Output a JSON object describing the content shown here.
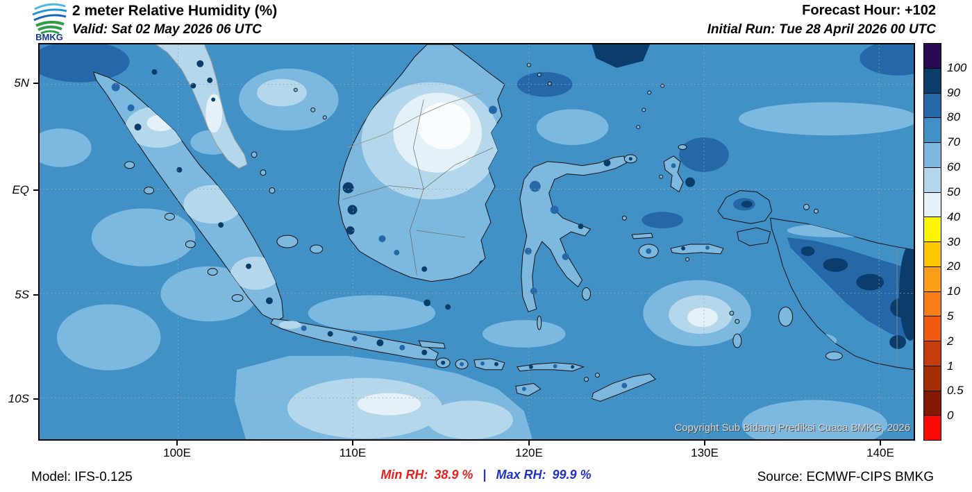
{
  "header": {
    "logo_text": "BMKG",
    "title": "2 meter Relative Humidity (%)",
    "valid": "Valid: Sat 02 May 2026 06 UTC",
    "forecast_hour": "Forecast Hour: +102",
    "initial_run": "Initial Run: Tue 28 April 2026 00 UTC"
  },
  "map": {
    "copyright": "Copyright Sub Bidang Prediksi Cuaca BMKG, 2026",
    "x_axis_labels": [
      "100E",
      "110E",
      "120E",
      "130E",
      "140E"
    ],
    "y_axis_labels": [
      "5N",
      "EQ",
      "5S",
      "10S"
    ]
  },
  "colorbar": {
    "labels": [
      "100",
      "90",
      "80",
      "70",
      "60",
      "50",
      "40",
      "30",
      "20",
      "10",
      "5",
      "2",
      "1",
      "0.5",
      "0"
    ],
    "colors": [
      "#2a0b52",
      "#0a3d6b",
      "#2667a8",
      "#4191c7",
      "#7db9de",
      "#b4d7ec",
      "#e4f1f9",
      "#fdf400",
      "#fdc800",
      "#fb9e18",
      "#f67d17",
      "#ee5a0f",
      "#c63d0d",
      "#a52e06",
      "#831803",
      "#fa0a05"
    ]
  },
  "footer": {
    "model": "Model: IFS-0.125",
    "min_rh_label": "Min RH:",
    "min_rh_value": "38.9 %",
    "separator": "|",
    "max_rh_label": "Max RH:",
    "max_rh_value": "99.9 %",
    "min_color": "#e8201c",
    "max_color": "#2230cc",
    "source": "Source: ECMWF-CIPS BMKG"
  },
  "chart_data": {
    "type": "heatmap",
    "title": "2 meter Relative Humidity (%)",
    "variable": "2 m relative humidity",
    "unit": "%",
    "region": "Indonesia",
    "x_ticks": [
      "100E",
      "110E",
      "120E",
      "130E",
      "140E"
    ],
    "y_ticks": [
      "5N",
      "EQ",
      "5S",
      "10S"
    ],
    "scale_levels": [
      100,
      90,
      80,
      70,
      60,
      50,
      40,
      30,
      20,
      10,
      5,
      2,
      1,
      0.5,
      0
    ],
    "scale_colors": [
      "#2a0b52",
      "#0a3d6b",
      "#2667a8",
      "#4191c7",
      "#7db9de",
      "#b4d7ec",
      "#e4f1f9",
      "#fdf400",
      "#fdc800",
      "#fb9e18",
      "#f67d17",
      "#ee5a0f",
      "#c63d0d",
      "#a52e06",
      "#831803",
      "#fa0a05"
    ],
    "min_value": 38.9,
    "max_value": 99.9,
    "legend_position": "right",
    "grid": "dotted"
  }
}
